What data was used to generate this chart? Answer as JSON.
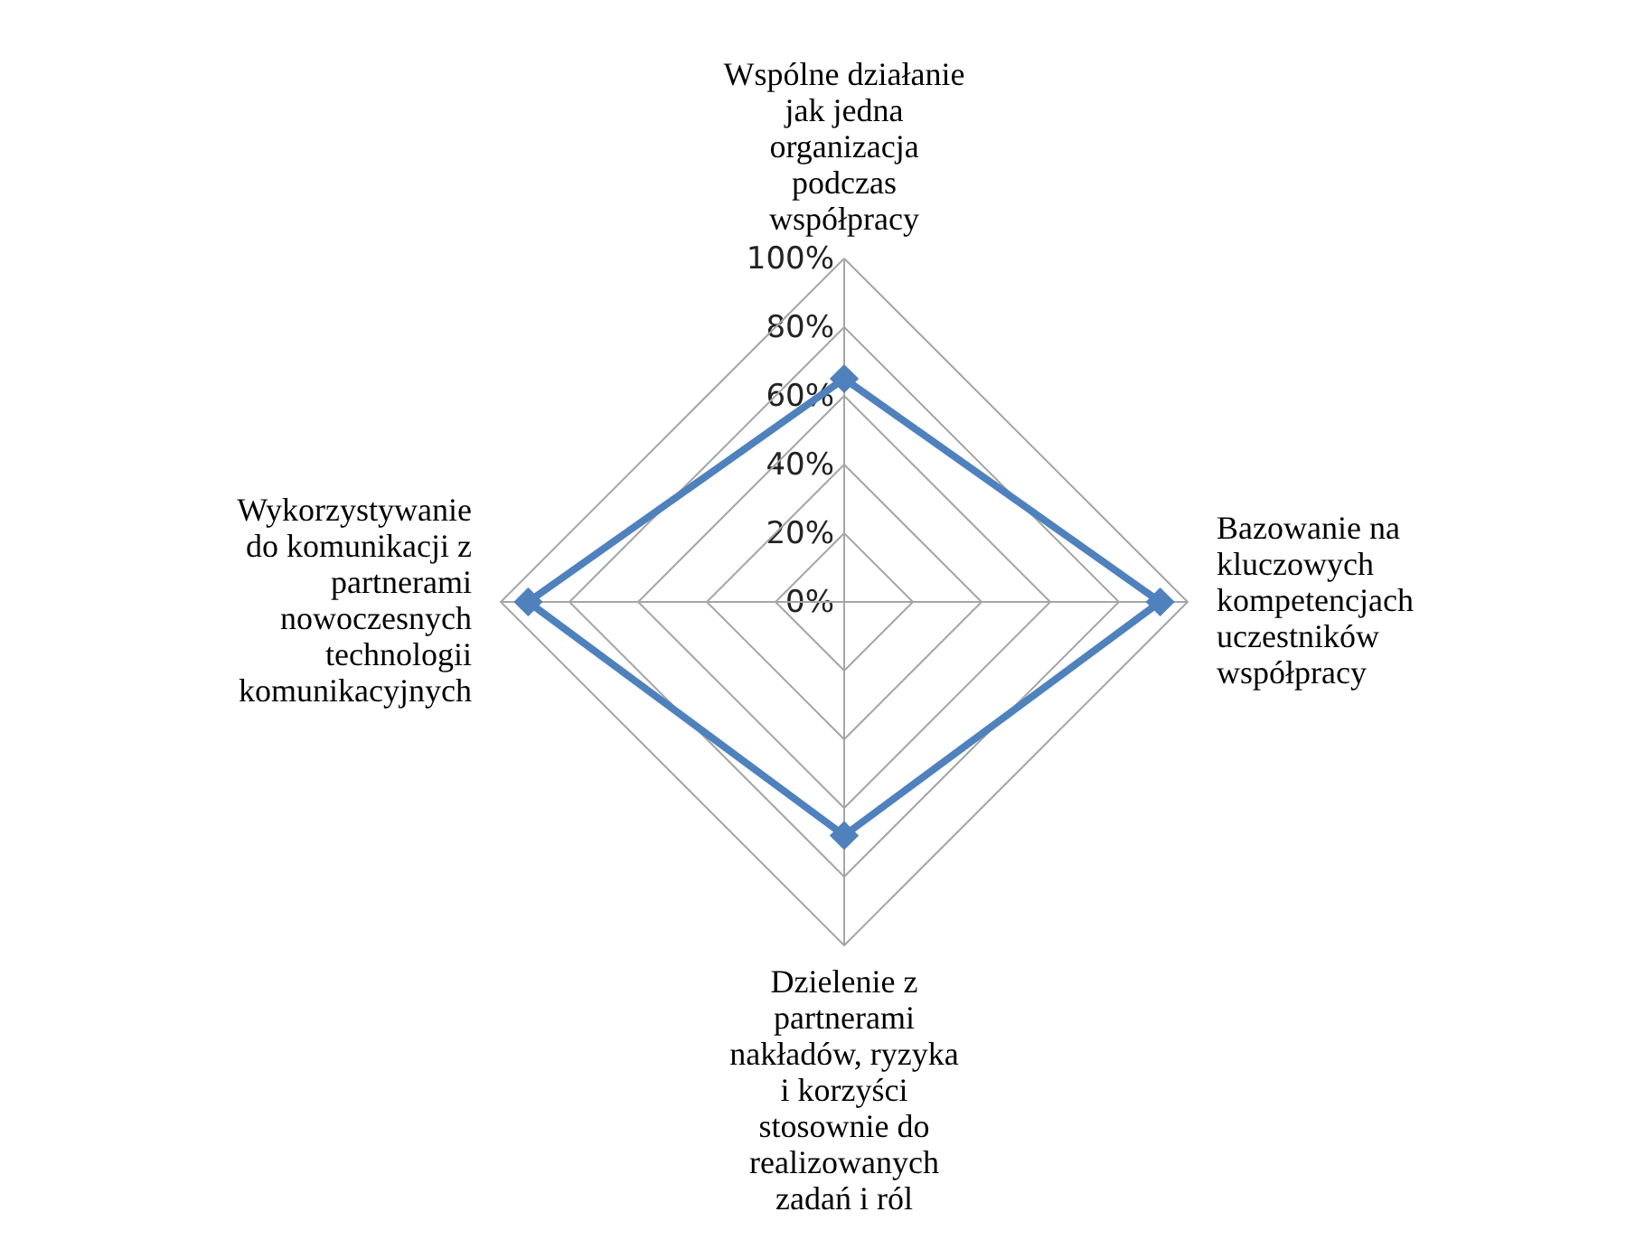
{
  "chart_data": {
    "type": "radar",
    "categories": [
      "Wspólne działanie jak jedna organizacja podczas współpracy",
      "Bazowanie na kluczowych kompetencjach uczestników współpracy",
      "Dzielenie z partnerami nakładów, ryzyka i korzyści stosownie do realizowanych zadań i ról",
      "Wykorzystywanie do komunikacji z partnerami nowoczesnych technologii komunikacyjnych"
    ],
    "series": [
      {
        "color": "#4f81bd",
        "values": [
          65,
          92,
          68,
          92
        ]
      }
    ],
    "ylim": [
      0,
      100
    ],
    "yticks": [
      {
        "value": 0,
        "label": "0%"
      },
      {
        "value": 20,
        "label": "20%"
      },
      {
        "value": 40,
        "label": "40%"
      },
      {
        "value": 60,
        "label": "60%"
      },
      {
        "value": 80,
        "label": "80%"
      },
      {
        "value": 100,
        "label": "100%"
      }
    ],
    "grid": true,
    "marker": "diamond"
  }
}
